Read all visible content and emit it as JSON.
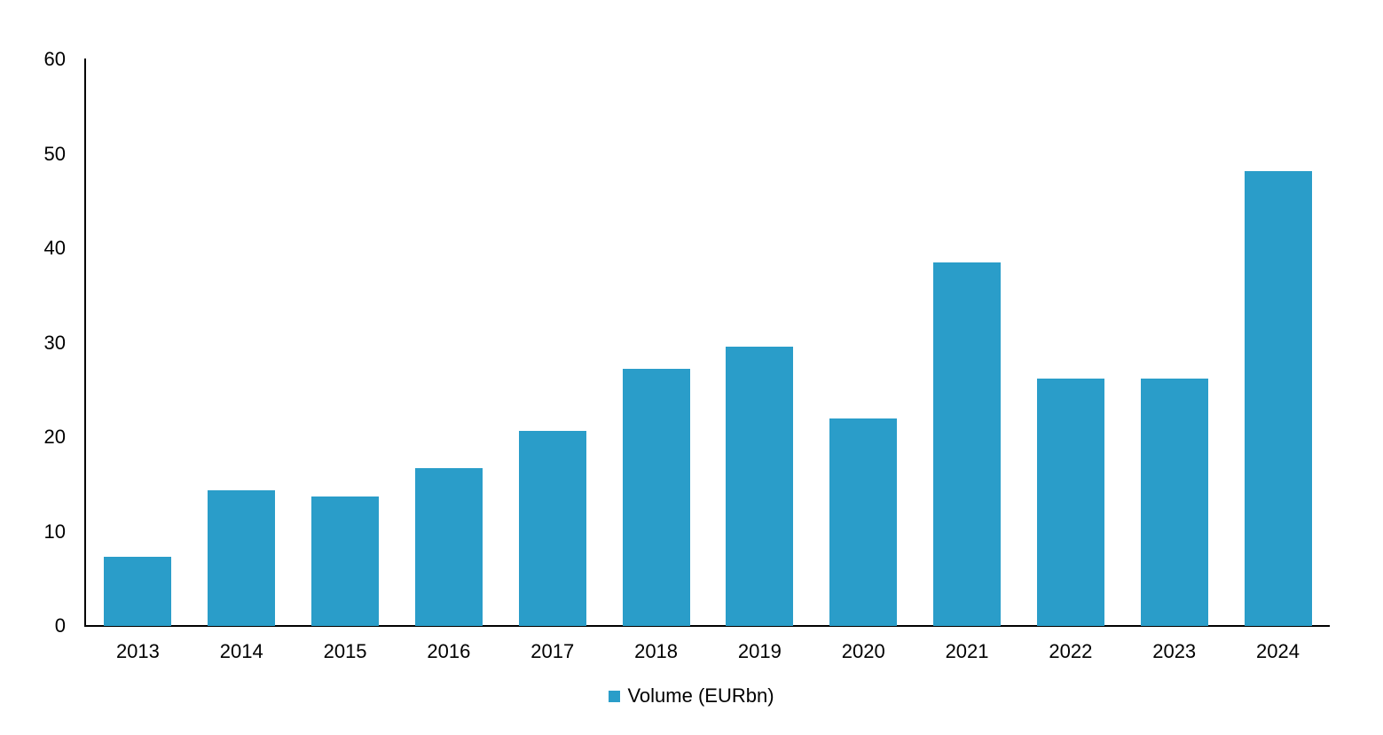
{
  "chart_data": {
    "type": "bar",
    "title": "",
    "categories": [
      "2013",
      "2014",
      "2015",
      "2016",
      "2017",
      "2018",
      "2019",
      "2020",
      "2021",
      "2022",
      "2023",
      "2024"
    ],
    "series": [
      {
        "name": "Volume (EURbn)",
        "values": [
          7.3,
          14.4,
          13.7,
          16.7,
          20.7,
          27.2,
          29.6,
          22.0,
          38.5,
          26.2,
          26.2,
          48.2
        ]
      }
    ],
    "legend": "Volume (EURbn)",
    "legend_position": "bottom-center",
    "legend_marker": "square",
    "xlabel": "",
    "ylabel": "",
    "ylim": [
      0,
      60
    ],
    "yticks": [
      0,
      10,
      20,
      30,
      40,
      50,
      60
    ],
    "grid": false,
    "bar_color": "#2A9DC9",
    "axis_color": "#000000",
    "text_color": "#000000"
  }
}
